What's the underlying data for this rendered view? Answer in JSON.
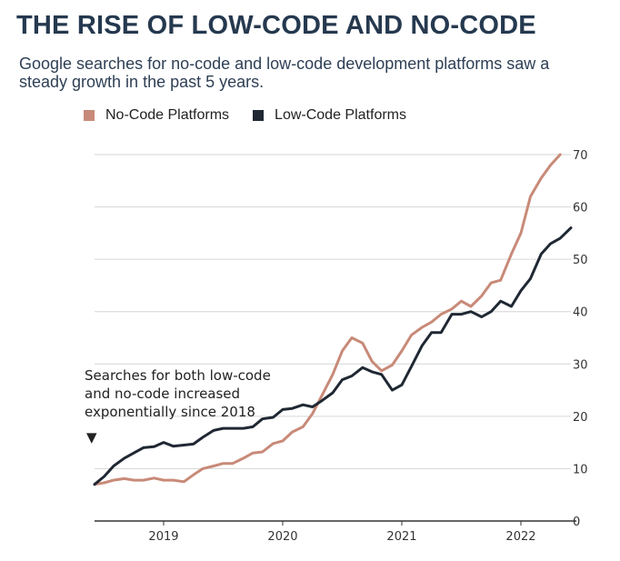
{
  "title": "THE RISE OF LOW-CODE AND NO-CODE",
  "subtitle": "Google searches for no-code and low-code development platforms saw a steady growth in the past 5 years.",
  "chart_data": {
    "type": "line",
    "title": "THE RISE OF LOW-CODE AND NO-CODE",
    "subtitle": "Google searches for no-code and low-code development platforms saw a steady growth in the past 5 years.",
    "xlabel": "",
    "ylabel": "",
    "ylim": [
      0,
      70
    ],
    "yticks": [
      0,
      10,
      20,
      30,
      40,
      50,
      60,
      70
    ],
    "xlim": [
      2018.42,
      2022.42
    ],
    "xticks": [
      "2019",
      "2020",
      "2021",
      "2022"
    ],
    "grid": "horizontal",
    "legend_position": "top-left",
    "annotation": "Searches for both low-code and no-code increased exponentially since 2018",
    "annotation_marker": "▼",
    "series": [
      {
        "name": "No-Code Platforms",
        "color": "#c88a78",
        "points": [
          [
            2018.42,
            7
          ],
          [
            2018.5,
            7.3
          ],
          [
            2018.58,
            7.8
          ],
          [
            2018.67,
            8.1
          ],
          [
            2018.75,
            7.8
          ],
          [
            2018.83,
            7.8
          ],
          [
            2018.92,
            8.2
          ],
          [
            2019.0,
            7.8
          ],
          [
            2019.08,
            7.8
          ],
          [
            2019.17,
            7.5
          ],
          [
            2019.25,
            8.8
          ],
          [
            2019.33,
            10
          ],
          [
            2019.42,
            10.5
          ],
          [
            2019.5,
            11
          ],
          [
            2019.58,
            11
          ],
          [
            2019.67,
            12
          ],
          [
            2019.75,
            13
          ],
          [
            2019.83,
            13.2
          ],
          [
            2019.92,
            14.8
          ],
          [
            2020.0,
            15.3
          ],
          [
            2020.08,
            17
          ],
          [
            2020.17,
            18
          ],
          [
            2020.25,
            20.5
          ],
          [
            2020.33,
            24
          ],
          [
            2020.42,
            28
          ],
          [
            2020.5,
            32.5
          ],
          [
            2020.58,
            35
          ],
          [
            2020.67,
            34
          ],
          [
            2020.75,
            30.5
          ],
          [
            2020.83,
            28.7
          ],
          [
            2020.92,
            29.8
          ],
          [
            2021.0,
            32.5
          ],
          [
            2021.08,
            35.5
          ],
          [
            2021.17,
            37
          ],
          [
            2021.25,
            38
          ],
          [
            2021.33,
            39.5
          ],
          [
            2021.42,
            40.5
          ],
          [
            2021.5,
            42
          ],
          [
            2021.58,
            41
          ],
          [
            2021.67,
            43
          ],
          [
            2021.75,
            45.5
          ],
          [
            2021.83,
            46
          ],
          [
            2021.92,
            51
          ],
          [
            2022.0,
            55
          ],
          [
            2022.08,
            62
          ],
          [
            2022.17,
            65.5
          ],
          [
            2022.25,
            68
          ],
          [
            2022.33,
            70
          ]
        ]
      },
      {
        "name": "Low-Code Platforms",
        "color": "#1f2833",
        "points": [
          [
            2018.42,
            7
          ],
          [
            2018.5,
            8.5
          ],
          [
            2018.58,
            10.5
          ],
          [
            2018.67,
            12
          ],
          [
            2018.75,
            13
          ],
          [
            2018.83,
            14
          ],
          [
            2018.92,
            14.2
          ],
          [
            2019.0,
            15
          ],
          [
            2019.08,
            14.3
          ],
          [
            2019.17,
            14.5
          ],
          [
            2019.25,
            14.7
          ],
          [
            2019.33,
            16
          ],
          [
            2019.42,
            17.3
          ],
          [
            2019.5,
            17.7
          ],
          [
            2019.58,
            17.7
          ],
          [
            2019.67,
            17.7
          ],
          [
            2019.75,
            18
          ],
          [
            2019.83,
            19.5
          ],
          [
            2019.92,
            19.8
          ],
          [
            2020.0,
            21.3
          ],
          [
            2020.08,
            21.5
          ],
          [
            2020.17,
            22.2
          ],
          [
            2020.25,
            21.8
          ],
          [
            2020.33,
            23
          ],
          [
            2020.42,
            24.5
          ],
          [
            2020.5,
            27
          ],
          [
            2020.58,
            27.7
          ],
          [
            2020.67,
            29.3
          ],
          [
            2020.75,
            28.5
          ],
          [
            2020.83,
            28
          ],
          [
            2020.92,
            25
          ],
          [
            2021.0,
            26
          ],
          [
            2021.08,
            29.5
          ],
          [
            2021.17,
            33.5
          ],
          [
            2021.25,
            36
          ],
          [
            2021.33,
            36
          ],
          [
            2021.42,
            39.5
          ],
          [
            2021.5,
            39.5
          ],
          [
            2021.58,
            40
          ],
          [
            2021.67,
            39
          ],
          [
            2021.75,
            40
          ],
          [
            2021.83,
            42
          ],
          [
            2021.92,
            41
          ],
          [
            2022.0,
            44
          ],
          [
            2022.08,
            46.3
          ],
          [
            2022.17,
            51
          ],
          [
            2022.25,
            53
          ],
          [
            2022.33,
            54
          ],
          [
            2022.42,
            56
          ]
        ]
      }
    ]
  }
}
